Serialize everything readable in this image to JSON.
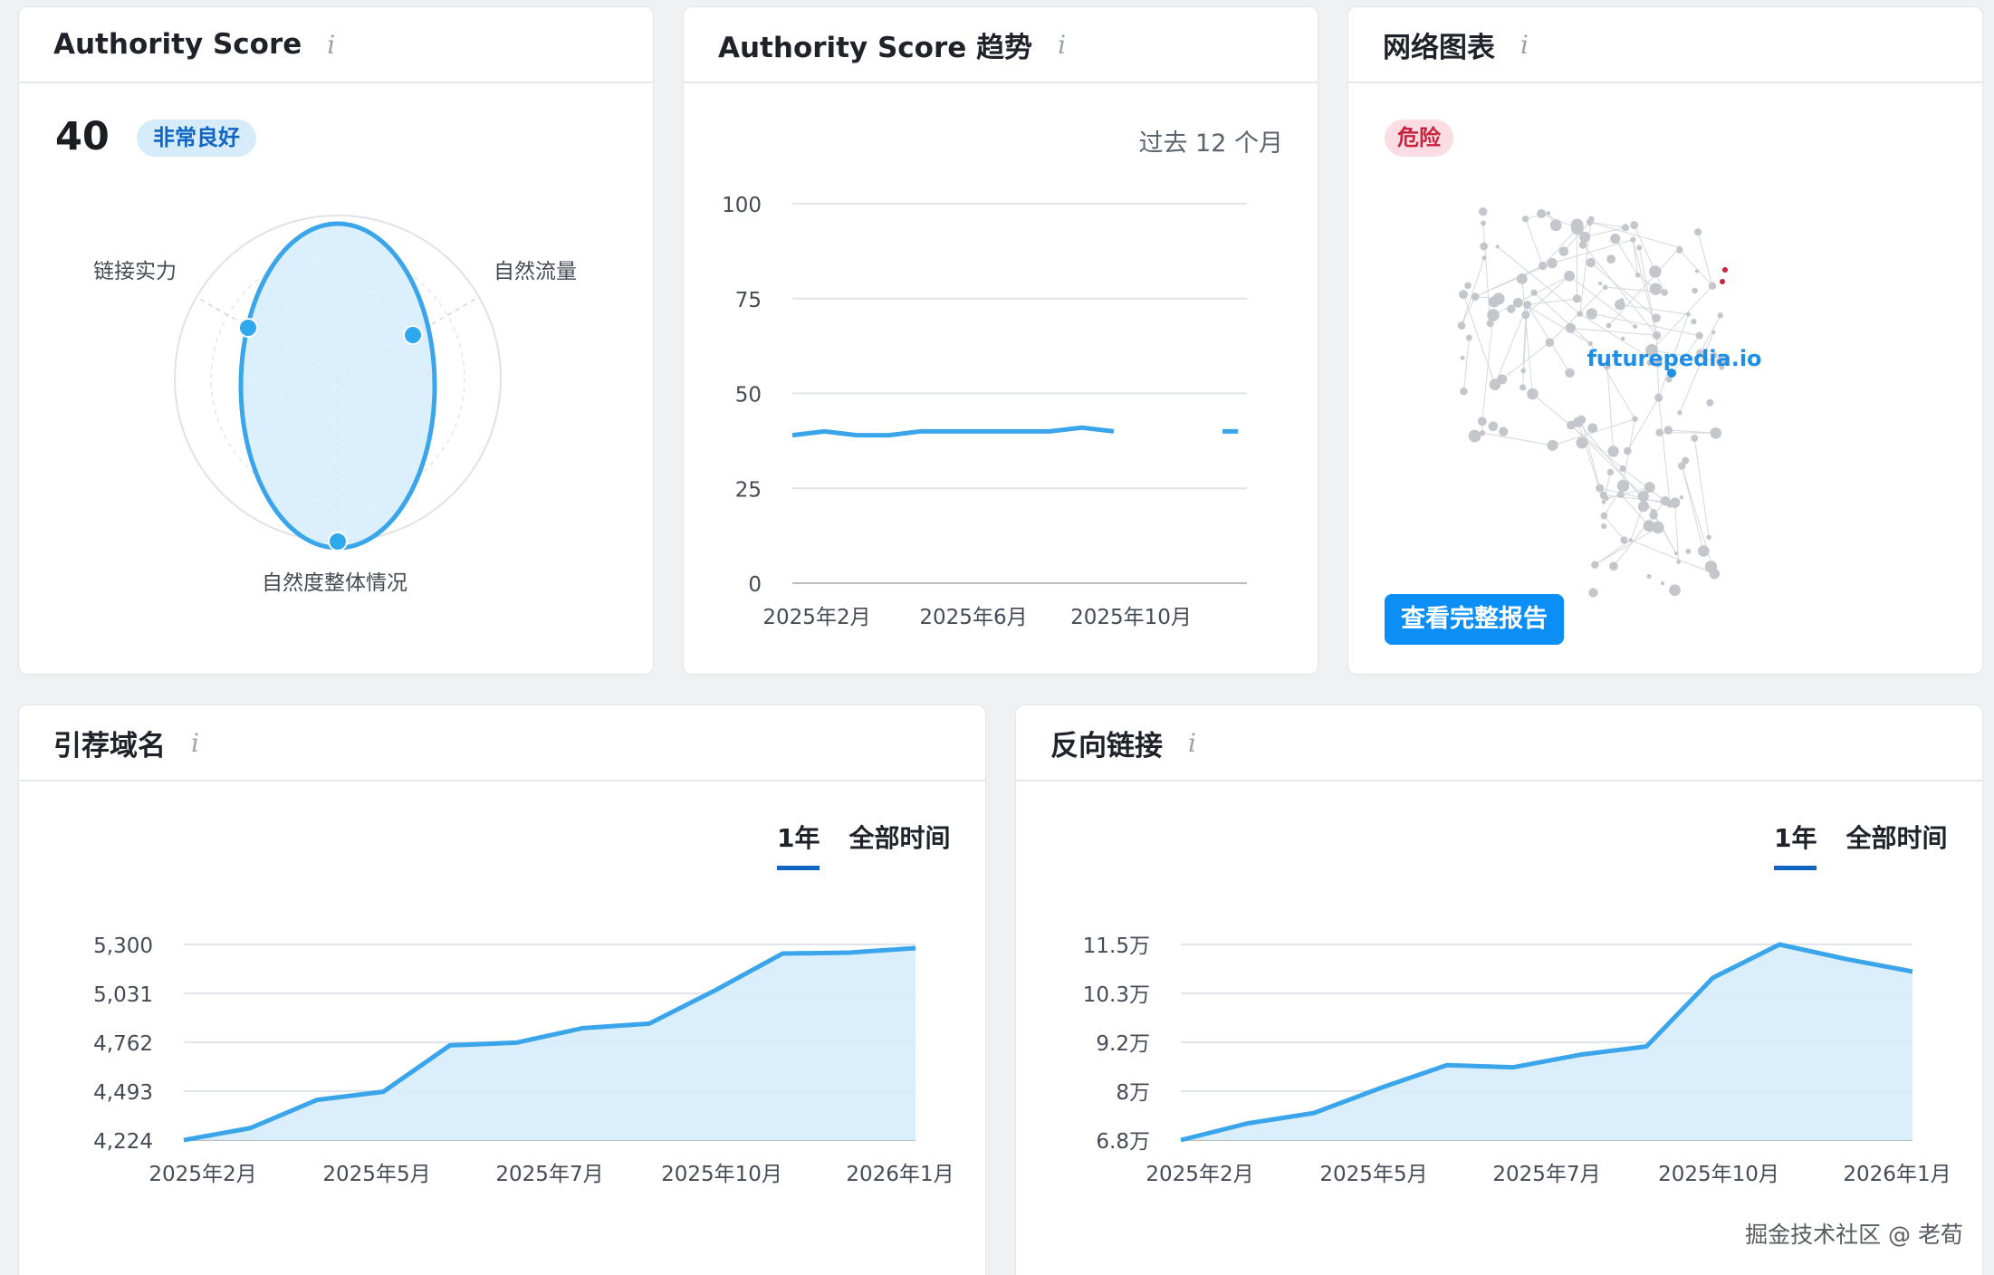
{
  "authority_card": {
    "title": "Authority Score",
    "info_icon": "i",
    "score": "40",
    "rating": "非常良好",
    "radar_labels": {
      "link_strength": "链接实力",
      "organic_traffic": "自然流量",
      "organic_overall": "自然度整体情况"
    }
  },
  "trend_card": {
    "title": "Authority Score 趋势",
    "info_icon": "i",
    "period": "过去 12 个月",
    "chart_data": {
      "type": "line",
      "y_ticks": [
        "100",
        "75",
        "50",
        "25",
        "0"
      ],
      "x_ticks": [
        "2025年2月",
        "2025年6月",
        "2025年10月"
      ],
      "ylim": [
        0,
        100
      ],
      "values": [
        39,
        40,
        39,
        39,
        40,
        40,
        40,
        40,
        40,
        41,
        40,
        40
      ]
    }
  },
  "network_card": {
    "title": "网络图表",
    "info_icon": "i",
    "status": "危险",
    "domain_label": "futurepedia.io",
    "button_label": "查看完整报告"
  },
  "referring_card": {
    "title": "引荐域名",
    "info_icon": "i",
    "tabs": [
      "1年",
      "全部时间"
    ],
    "chart_data": {
      "type": "area",
      "y_ticks": [
        "5,300",
        "5,031",
        "4,762",
        "4,493",
        "4,224"
      ],
      "x_ticks": [
        "2025年2月",
        "2025年5月",
        "2025年7月",
        "2025年10月",
        "2026年1月"
      ],
      "ylim": [
        4224,
        5300
      ],
      "values": [
        4224,
        4290,
        4445,
        4490,
        4745,
        4760,
        4840,
        4865,
        5050,
        5250,
        5255,
        5280
      ]
    }
  },
  "backlinks_card": {
    "title": "反向链接",
    "info_icon": "i",
    "tabs": [
      "1年",
      "全部时间"
    ],
    "chart_data": {
      "type": "area",
      "y_ticks": [
        "11.5万",
        "10.3万",
        "9.2万",
        "8万",
        "6.8万"
      ],
      "x_ticks": [
        "2025年2月",
        "2025年5月",
        "2025年7月",
        "2025年10月",
        "2026年1月"
      ],
      "ylim": [
        68000,
        115000
      ],
      "values": [
        68000,
        72000,
        74500,
        80500,
        86000,
        85500,
        88500,
        90500,
        107000,
        115000,
        111500,
        108500
      ]
    }
  },
  "colors": {
    "accent": "#3aa5ea",
    "area_fill": "#d6ecfb",
    "grid": "#e1e4e8",
    "danger": "#c8233f",
    "button": "#0b8ef5"
  },
  "watermark": "掘金技术社区 @ 老荀"
}
